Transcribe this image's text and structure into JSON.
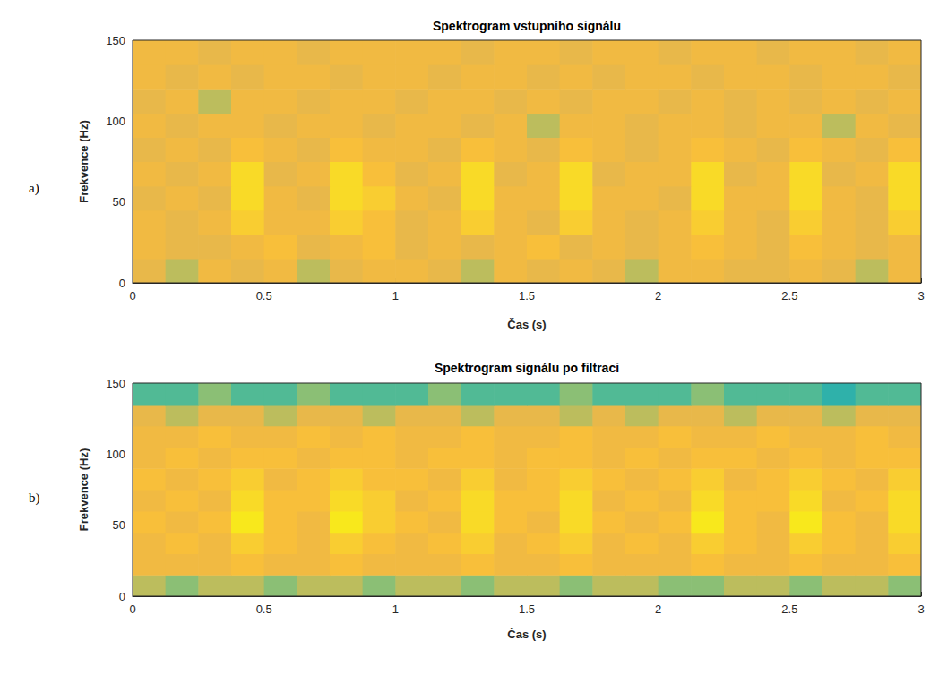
{
  "chart_data": [
    {
      "type": "heatmap",
      "label": "a)",
      "title": "Spektrogram vstupního signálu",
      "x_label": "Čas (s)",
      "y_label": "Frekvence (Hz)",
      "xlim": [
        0,
        3
      ],
      "xticks": [
        0,
        0.5,
        1,
        1.5,
        2,
        2.5,
        3
      ],
      "ylim": [
        0,
        150
      ],
      "yticks": [
        0,
        50,
        100,
        150
      ],
      "clim": [
        0,
        10
      ],
      "x_edges": [
        0,
        0.125,
        0.25,
        0.375,
        0.5,
        0.625,
        0.75,
        0.875,
        1,
        1.125,
        1.25,
        1.375,
        1.5,
        1.625,
        1.75,
        1.875,
        2,
        2.125,
        2.25,
        2.375,
        2.5,
        2.625,
        2.75,
        2.875,
        3
      ],
      "y_edges": [
        0,
        15,
        30,
        45,
        60,
        75,
        90,
        105,
        120,
        135,
        150
      ],
      "cells": [
        [
          5,
          4,
          6,
          5,
          6,
          4,
          5,
          6,
          6,
          5,
          4,
          6,
          5,
          6,
          5,
          4,
          6,
          6,
          5,
          5,
          6,
          5,
          4,
          6
        ],
        [
          6,
          5,
          5,
          6,
          7,
          5,
          6,
          7,
          5,
          6,
          5,
          6,
          7,
          5,
          6,
          5,
          6,
          7,
          6,
          5,
          7,
          6,
          5,
          6
        ],
        [
          6,
          5,
          6,
          8,
          6,
          6,
          8,
          7,
          5,
          6,
          8,
          6,
          5,
          8,
          6,
          5,
          6,
          8,
          6,
          5,
          8,
          6,
          5,
          8
        ],
        [
          5,
          6,
          5,
          9,
          6,
          5,
          9,
          8,
          6,
          5,
          9,
          6,
          6,
          9,
          6,
          6,
          5,
          9,
          6,
          6,
          9,
          6,
          5,
          9
        ],
        [
          6,
          5,
          6,
          9,
          5,
          6,
          9,
          7,
          5,
          6,
          9,
          5,
          6,
          9,
          5,
          6,
          6,
          9,
          5,
          6,
          9,
          5,
          6,
          9
        ],
        [
          5,
          6,
          5,
          7,
          6,
          5,
          7,
          6,
          6,
          5,
          7,
          6,
          5,
          7,
          6,
          5,
          6,
          7,
          6,
          5,
          7,
          6,
          5,
          7
        ],
        [
          6,
          5,
          6,
          6,
          5,
          6,
          6,
          5,
          6,
          6,
          5,
          6,
          4,
          6,
          6,
          5,
          6,
          6,
          5,
          6,
          6,
          4,
          6,
          5
        ],
        [
          5,
          6,
          4,
          6,
          6,
          5,
          6,
          6,
          5,
          6,
          6,
          5,
          6,
          5,
          6,
          6,
          5,
          6,
          5,
          6,
          5,
          6,
          5,
          6
        ],
        [
          6,
          5,
          6,
          5,
          6,
          6,
          5,
          6,
          6,
          5,
          6,
          6,
          5,
          6,
          5,
          6,
          6,
          5,
          6,
          6,
          5,
          6,
          6,
          5
        ],
        [
          6,
          6,
          5,
          6,
          6,
          5,
          6,
          6,
          6,
          6,
          5,
          6,
          6,
          5,
          6,
          6,
          5,
          6,
          6,
          5,
          6,
          6,
          5,
          6
        ]
      ]
    },
    {
      "type": "heatmap",
      "label": "b)",
      "title": "Spektrogram signálu po filtraci",
      "x_label": "Čas (s)",
      "y_label": "Frekvence (Hz)",
      "xlim": [
        0,
        3
      ],
      "xticks": [
        0,
        0.5,
        1,
        1.5,
        2,
        2.5,
        3
      ],
      "ylim": [
        0,
        150
      ],
      "yticks": [
        0,
        50,
        100,
        150
      ],
      "clim": [
        0,
        10
      ],
      "x_edges": [
        0,
        0.125,
        0.25,
        0.375,
        0.5,
        0.625,
        0.75,
        0.875,
        1,
        1.125,
        1.25,
        1.375,
        1.5,
        1.625,
        1.75,
        1.875,
        2,
        2.125,
        2.25,
        2.375,
        2.5,
        2.625,
        2.75,
        2.875,
        3
      ],
      "y_edges": [
        0,
        15,
        30,
        45,
        60,
        75,
        90,
        105,
        120,
        135,
        150
      ],
      "cells": [
        [
          4,
          3,
          4,
          4,
          3,
          4,
          4,
          3,
          4,
          4,
          3,
          4,
          4,
          3,
          4,
          4,
          3,
          3,
          4,
          4,
          3,
          4,
          4,
          3
        ],
        [
          6,
          6,
          6,
          7,
          6,
          6,
          7,
          6,
          6,
          6,
          7,
          6,
          6,
          7,
          6,
          6,
          6,
          7,
          6,
          6,
          7,
          6,
          6,
          7
        ],
        [
          6,
          7,
          6,
          8,
          7,
          6,
          8,
          7,
          6,
          7,
          8,
          6,
          7,
          8,
          6,
          7,
          6,
          8,
          7,
          6,
          8,
          7,
          6,
          8
        ],
        [
          7,
          6,
          7,
          10,
          7,
          6,
          10,
          8,
          7,
          6,
          9,
          7,
          6,
          9,
          7,
          6,
          7,
          10,
          7,
          6,
          10,
          7,
          6,
          9
        ],
        [
          6,
          7,
          6,
          9,
          7,
          7,
          9,
          8,
          6,
          7,
          9,
          7,
          7,
          9,
          6,
          7,
          6,
          9,
          7,
          7,
          9,
          6,
          7,
          9
        ],
        [
          7,
          6,
          7,
          8,
          6,
          7,
          8,
          7,
          7,
          6,
          8,
          6,
          7,
          8,
          7,
          6,
          7,
          8,
          6,
          7,
          8,
          7,
          6,
          8
        ],
        [
          6,
          7,
          6,
          7,
          7,
          6,
          7,
          7,
          6,
          7,
          7,
          6,
          7,
          7,
          6,
          7,
          6,
          7,
          7,
          6,
          7,
          6,
          7,
          7
        ],
        [
          6,
          6,
          7,
          6,
          6,
          7,
          6,
          7,
          6,
          6,
          7,
          6,
          6,
          7,
          6,
          6,
          7,
          6,
          6,
          7,
          6,
          6,
          7,
          6
        ],
        [
          5,
          4,
          5,
          5,
          4,
          5,
          5,
          4,
          5,
          5,
          4,
          5,
          5,
          4,
          5,
          4,
          5,
          5,
          4,
          5,
          5,
          4,
          5,
          5
        ],
        [
          2,
          2,
          3,
          2,
          2,
          3,
          2,
          2,
          2,
          3,
          2,
          2,
          2,
          3,
          2,
          2,
          2,
          3,
          2,
          2,
          2,
          1,
          2,
          2
        ]
      ]
    }
  ]
}
